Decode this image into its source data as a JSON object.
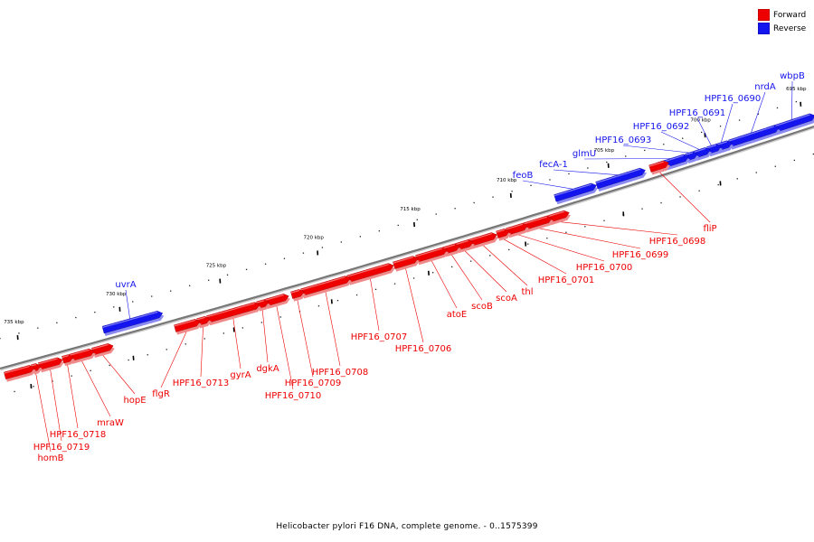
{
  "colors": {
    "forward": "#ee0000",
    "reverse": "#1414ee",
    "backbone": "#777777"
  },
  "legend": [
    {
      "key": "forward",
      "label": "Forward"
    },
    {
      "key": "reverse",
      "label": "Reverse"
    }
  ],
  "caption": "Helicobacter pylori F16 DNA, complete genome. - 0..1575399",
  "scale_ticks": [
    "735 kbp",
    "730 kbp",
    "725 kbp",
    "720 kbp",
    "715 kbp",
    "710 kbp",
    "705 kbp",
    "700 kbp",
    "695 kbp"
  ],
  "genes": [
    {
      "name": "wbpB",
      "strand": "reverse"
    },
    {
      "name": "nrdA",
      "strand": "reverse"
    },
    {
      "name": "HPF16_0690",
      "strand": "reverse"
    },
    {
      "name": "HPF16_0691",
      "strand": "reverse"
    },
    {
      "name": "HPF16_0692",
      "strand": "reverse"
    },
    {
      "name": "HPF16_0693",
      "strand": "reverse"
    },
    {
      "name": "glmU",
      "strand": "reverse"
    },
    {
      "name": "fecA-1",
      "strand": "reverse"
    },
    {
      "name": "feoB",
      "strand": "reverse"
    },
    {
      "name": "uvrA",
      "strand": "reverse"
    },
    {
      "name": "fliP",
      "strand": "forward"
    },
    {
      "name": "HPF16_0698",
      "strand": "forward"
    },
    {
      "name": "HPF16_0699",
      "strand": "forward"
    },
    {
      "name": "HPF16_0700",
      "strand": "forward"
    },
    {
      "name": "HPF16_0701",
      "strand": "forward"
    },
    {
      "name": "thl",
      "strand": "forward"
    },
    {
      "name": "scoA",
      "strand": "forward"
    },
    {
      "name": "scoB",
      "strand": "forward"
    },
    {
      "name": "atoE",
      "strand": "forward"
    },
    {
      "name": "HPF16_0706",
      "strand": "forward"
    },
    {
      "name": "HPF16_0707",
      "strand": "forward"
    },
    {
      "name": "HPF16_0708",
      "strand": "forward"
    },
    {
      "name": "HPF16_0709",
      "strand": "forward"
    },
    {
      "name": "HPF16_0710",
      "strand": "forward"
    },
    {
      "name": "dgkA",
      "strand": "forward"
    },
    {
      "name": "gyrA",
      "strand": "forward"
    },
    {
      "name": "HPF16_0713",
      "strand": "forward"
    },
    {
      "name": "flgR",
      "strand": "forward"
    },
    {
      "name": "hopE",
      "strand": "forward"
    },
    {
      "name": "mraW",
      "strand": "forward"
    },
    {
      "name": "HPF16_0718",
      "strand": "forward"
    },
    {
      "name": "HPF16_0719",
      "strand": "forward"
    },
    {
      "name": "homB",
      "strand": "forward"
    }
  ]
}
